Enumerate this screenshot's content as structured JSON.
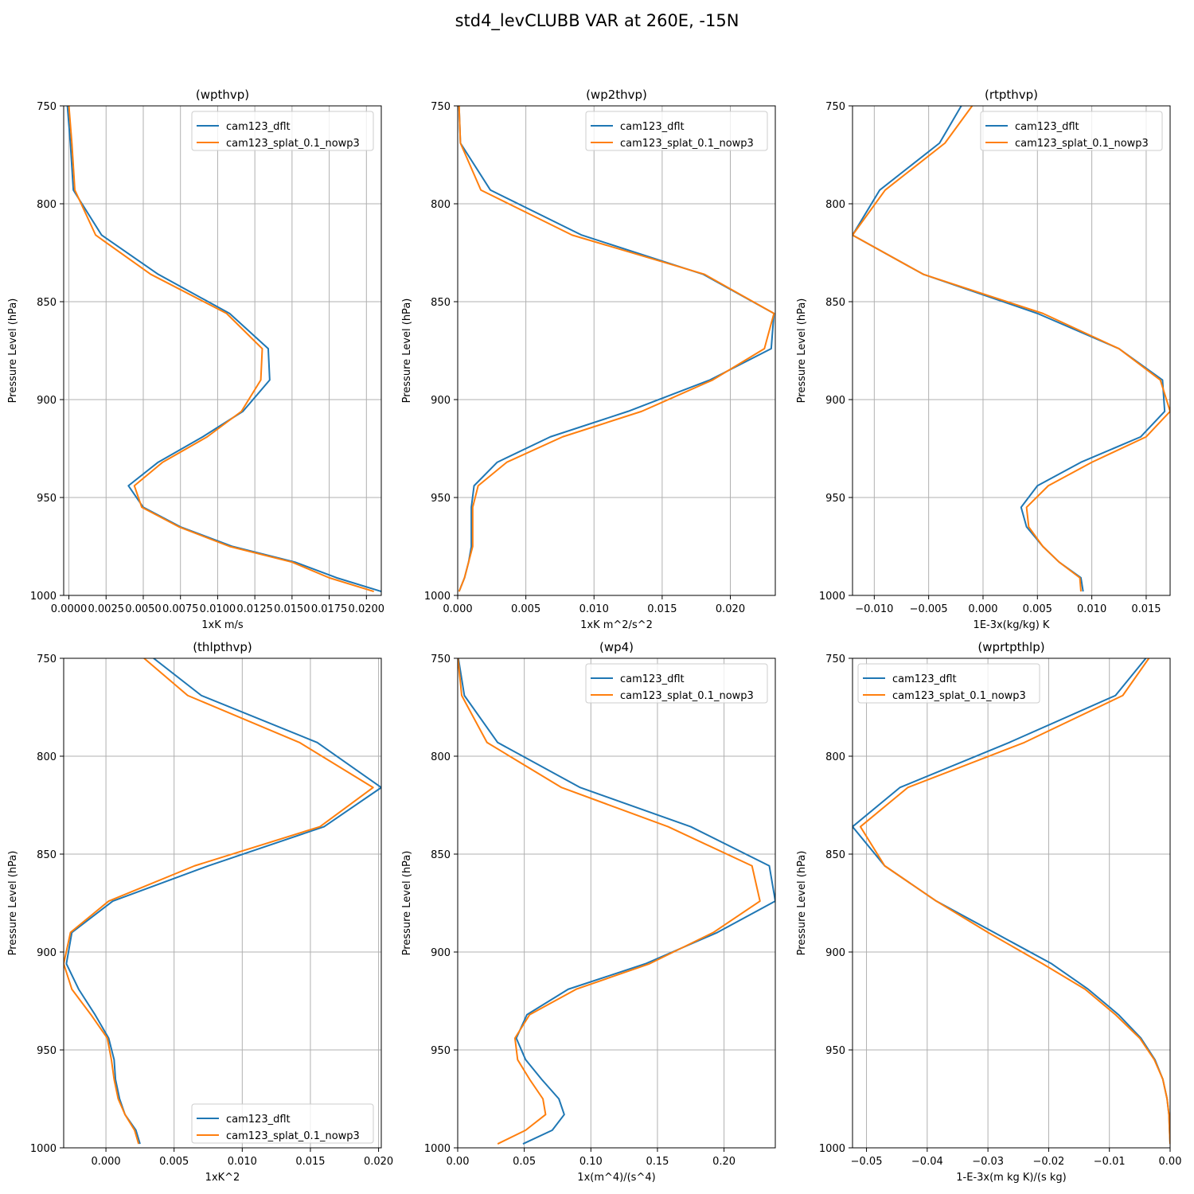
{
  "figure": {
    "title": "std4_levCLUBB VAR at 260E, -15N"
  },
  "colors": {
    "series1": "#1f77b4",
    "series2": "#ff7f0e",
    "grid": "#b0b0b0",
    "legend_border": "#cccccc"
  },
  "chart_data": [
    {
      "type": "line",
      "title": "(wpthvp)",
      "xlabel": "1xK m/s",
      "ylabel": "Pressure Level (hPa)",
      "xlim": [
        -0.00035,
        0.021
      ],
      "ylim": [
        1000,
        750
      ],
      "y_inverted": true,
      "xticks": [
        0,
        0.0025,
        0.005,
        0.0075,
        0.01,
        0.0125,
        0.015,
        0.0175,
        0.02
      ],
      "xtick_labels": [
        "0.0000",
        "0.0025",
        "0.0050",
        "0.0075",
        "0.0100",
        "0.0125",
        "0.0150",
        "0.0175",
        "0.0200"
      ],
      "yticks": [
        750,
        800,
        850,
        900,
        950,
        1000
      ],
      "ytick_labels": [
        "750",
        "800",
        "850",
        "900",
        "950",
        "1000"
      ],
      "grid": true,
      "legend_position": "upper right",
      "levels": [
        750,
        769,
        793,
        816,
        836,
        856,
        874,
        890,
        906,
        919,
        932,
        944,
        955,
        965,
        975,
        983,
        991,
        998
      ],
      "series": [
        {
          "name": "cam123_dflt",
          "x": [
            -0.0001,
            0.0001,
            0.0003,
            0.0022,
            0.006,
            0.0108,
            0.0134,
            0.0135,
            0.0117,
            0.009,
            0.006,
            0.004,
            0.005,
            0.0075,
            0.011,
            0.0152,
            0.018,
            0.021
          ]
        },
        {
          "name": "cam123_splat_0.1_nowp3",
          "x": [
            0.0,
            0.0002,
            0.0004,
            0.0018,
            0.0055,
            0.0106,
            0.013,
            0.0129,
            0.0116,
            0.0093,
            0.0063,
            0.0044,
            0.0049,
            0.0074,
            0.0108,
            0.015,
            0.0175,
            0.0205
          ]
        }
      ]
    },
    {
      "type": "line",
      "title": "(wp2thvp)",
      "xlabel": "1xK m^2/s^2",
      "ylabel": "Pressure Level (hPa)",
      "xlim": [
        0.0,
        0.0233
      ],
      "ylim": [
        1000,
        750
      ],
      "y_inverted": true,
      "xticks": [
        0,
        0.005,
        0.01,
        0.015,
        0.02
      ],
      "xtick_labels": [
        "0.000",
        "0.005",
        "0.010",
        "0.015",
        "0.020"
      ],
      "yticks": [
        750,
        800,
        850,
        900,
        950,
        1000
      ],
      "ytick_labels": [
        "750",
        "800",
        "850",
        "900",
        "950",
        "1000"
      ],
      "grid": true,
      "legend_position": "upper right",
      "levels": [
        750,
        769,
        793,
        816,
        836,
        856,
        874,
        890,
        906,
        919,
        932,
        944,
        955,
        965,
        975,
        983,
        991,
        998
      ],
      "series": [
        {
          "name": "cam123_dflt",
          "x": [
            0.0001,
            0.0002,
            0.0024,
            0.0091,
            0.018,
            0.0232,
            0.023,
            0.0185,
            0.0125,
            0.0068,
            0.0029,
            0.0012,
            0.001,
            0.001,
            0.001,
            0.0008,
            0.0005,
            0.0001
          ]
        },
        {
          "name": "cam123_splat_0.1_nowp3",
          "x": [
            0.0001,
            0.0002,
            0.0017,
            0.0084,
            0.0181,
            0.0232,
            0.0225,
            0.0187,
            0.0135,
            0.0077,
            0.0036,
            0.0015,
            0.0011,
            0.0011,
            0.0011,
            0.0008,
            0.0005,
            0.0001
          ]
        }
      ]
    },
    {
      "type": "line",
      "title": "(rtpthvp)",
      "xlabel": "1E-3x(kg/kg) K",
      "ylabel": "Pressure Level (hPa)",
      "xlim": [
        -0.012,
        0.0172
      ],
      "ylim": [
        1000,
        750
      ],
      "y_inverted": true,
      "xticks": [
        -0.01,
        -0.005,
        0.0,
        0.005,
        0.01,
        0.015
      ],
      "xtick_labels": [
        "−0.010",
        "−0.005",
        "0.000",
        "0.005",
        "0.010",
        "0.015"
      ],
      "yticks": [
        750,
        800,
        850,
        900,
        950,
        1000
      ],
      "ytick_labels": [
        "750",
        "800",
        "850",
        "900",
        "950",
        "1000"
      ],
      "grid": true,
      "legend_position": "upper right",
      "levels": [
        750,
        769,
        793,
        816,
        836,
        856,
        874,
        890,
        906,
        919,
        932,
        944,
        955,
        965,
        975,
        983,
        991,
        998
      ],
      "series": [
        {
          "name": "cam123_dflt",
          "x": [
            -0.002,
            -0.004,
            -0.0095,
            -0.012,
            -0.0055,
            0.005,
            0.0125,
            0.0165,
            0.0167,
            0.0145,
            0.009,
            0.005,
            0.0035,
            0.004,
            0.0055,
            0.007,
            0.009,
            0.0092
          ]
        },
        {
          "name": "cam123_splat_0.1_nowp3",
          "x": [
            -0.001,
            -0.0035,
            -0.009,
            -0.012,
            -0.0055,
            0.0055,
            0.0125,
            0.0163,
            0.0172,
            0.015,
            0.01,
            0.006,
            0.004,
            0.0042,
            0.0055,
            0.007,
            0.0089,
            0.009
          ]
        }
      ]
    },
    {
      "type": "line",
      "title": "(thlpthvp)",
      "xlabel": "1xK^2",
      "ylabel": "Pressure Level (hPa)",
      "xlim": [
        -0.0031,
        0.0202
      ],
      "ylim": [
        1000,
        750
      ],
      "y_inverted": true,
      "xticks": [
        0.0,
        0.005,
        0.01,
        0.015,
        0.02
      ],
      "xtick_labels": [
        "0.000",
        "0.005",
        "0.010",
        "0.015",
        "0.020"
      ],
      "yticks": [
        750,
        800,
        850,
        900,
        950,
        1000
      ],
      "ytick_labels": [
        "750",
        "800",
        "850",
        "900",
        "950",
        "1000"
      ],
      "grid": true,
      "legend_position": "lower right",
      "levels": [
        750,
        769,
        793,
        816,
        836,
        856,
        874,
        890,
        906,
        919,
        932,
        944,
        955,
        965,
        975,
        983,
        991,
        998
      ],
      "series": [
        {
          "name": "cam123_dflt",
          "x": [
            0.0035,
            0.007,
            0.0155,
            0.0202,
            0.016,
            0.0075,
            0.0005,
            -0.0025,
            -0.0029,
            -0.002,
            -0.0008,
            0.0002,
            0.0006,
            0.0007,
            0.001,
            0.0014,
            0.0022,
            0.0025
          ]
        },
        {
          "name": "cam123_splat_0.1_nowp3",
          "x": [
            0.0028,
            0.006,
            0.0142,
            0.0196,
            0.0157,
            0.0065,
            0.0002,
            -0.0026,
            -0.0031,
            -0.0025,
            -0.0011,
            0.0001,
            0.0004,
            0.0006,
            0.0009,
            0.0014,
            0.0021,
            0.0024
          ]
        }
      ]
    },
    {
      "type": "line",
      "title": "(wp4)",
      "xlabel": "1x(m^4)/(s^4)",
      "ylabel": "Pressure Level (hPa)",
      "xlim": [
        0.0,
        0.2385
      ],
      "ylim": [
        1000,
        750
      ],
      "y_inverted": true,
      "xticks": [
        0.0,
        0.05,
        0.1,
        0.15,
        0.2
      ],
      "xtick_labels": [
        "0.00",
        "0.05",
        "0.10",
        "0.15",
        "0.20"
      ],
      "yticks": [
        750,
        800,
        850,
        900,
        950,
        1000
      ],
      "ytick_labels": [
        "750",
        "800",
        "850",
        "900",
        "950",
        "1000"
      ],
      "grid": true,
      "legend_position": "upper right",
      "levels": [
        750,
        769,
        793,
        816,
        836,
        856,
        874,
        890,
        906,
        919,
        932,
        944,
        955,
        965,
        975,
        983,
        991,
        998
      ],
      "series": [
        {
          "name": "cam123_dflt",
          "x": [
            0.0005,
            0.005,
            0.03,
            0.092,
            0.175,
            0.234,
            0.2385,
            0.195,
            0.141,
            0.083,
            0.052,
            0.044,
            0.051,
            0.063,
            0.076,
            0.08,
            0.071,
            0.049
          ]
        },
        {
          "name": "cam123_splat_0.1_nowp3",
          "x": [
            0.0002,
            0.003,
            0.022,
            0.078,
            0.158,
            0.221,
            0.227,
            0.192,
            0.144,
            0.089,
            0.054,
            0.043,
            0.045,
            0.054,
            0.064,
            0.066,
            0.051,
            0.03
          ]
        }
      ]
    },
    {
      "type": "line",
      "title": "(wprtpthlp)",
      "xlabel": "1-E-3x(m kg K)/(s kg)",
      "ylabel": "Pressure Level (hPa)",
      "xlim": [
        -0.0523,
        0.0
      ],
      "ylim": [
        1000,
        750
      ],
      "y_inverted": true,
      "xticks": [
        -0.05,
        -0.04,
        -0.03,
        -0.02,
        -0.01,
        0.0
      ],
      "xtick_labels": [
        "−0.05",
        "−0.04",
        "−0.03",
        "−0.02",
        "−0.01",
        "0.00"
      ],
      "yticks": [
        750,
        800,
        850,
        900,
        950,
        1000
      ],
      "ytick_labels": [
        "750",
        "800",
        "850",
        "900",
        "950",
        "1000"
      ],
      "grid": true,
      "legend_position": "upper left",
      "levels": [
        750,
        769,
        793,
        816,
        836,
        856,
        874,
        890,
        906,
        919,
        932,
        944,
        955,
        965,
        975,
        983,
        991,
        998
      ],
      "series": [
        {
          "name": "cam123_dflt",
          "x": [
            -0.004,
            -0.009,
            -0.0265,
            -0.0445,
            -0.0523,
            -0.047,
            -0.0385,
            -0.029,
            -0.0195,
            -0.0135,
            -0.0085,
            -0.0048,
            -0.0025,
            -0.0012,
            -0.0005,
            -0.0002,
            -0.0001,
            0.0
          ]
        },
        {
          "name": "cam123_splat_0.1_nowp3",
          "x": [
            -0.0035,
            -0.0078,
            -0.024,
            -0.0432,
            -0.051,
            -0.047,
            -0.0385,
            -0.03,
            -0.021,
            -0.014,
            -0.009,
            -0.005,
            -0.0026,
            -0.0012,
            -0.0005,
            -0.0002,
            -0.0001,
            0.0
          ]
        }
      ]
    }
  ]
}
